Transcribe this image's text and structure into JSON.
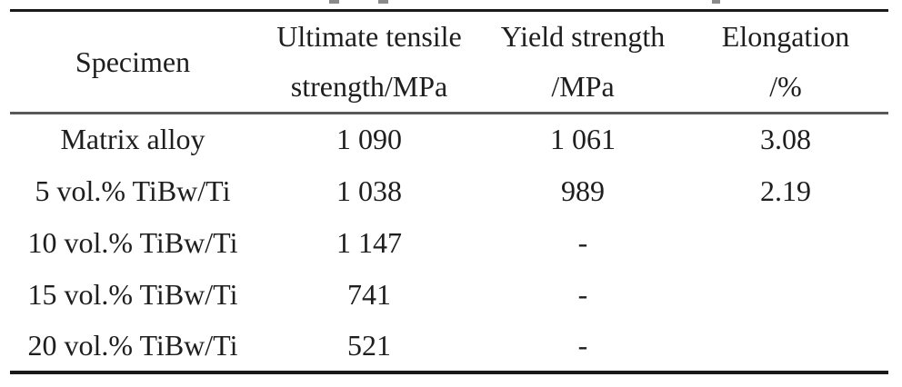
{
  "table": {
    "headers": [
      {
        "line1": "Specimen",
        "line2": ""
      },
      {
        "line1": "Ultimate tensile",
        "line2": "strength/MPa"
      },
      {
        "line1": "Yield strength",
        "line2": "/MPa"
      },
      {
        "line1": "Elongation",
        "line2": "/%"
      }
    ],
    "rows": [
      {
        "specimen": "Matrix alloy",
        "uts": "1 090",
        "yield": "1 061",
        "elongation": "3.08"
      },
      {
        "specimen": "5 vol.% TiBw/Ti",
        "uts": "1 038",
        "yield": "989",
        "elongation": "2.19"
      },
      {
        "specimen": "10 vol.% TiBw/Ti",
        "uts": "1 147",
        "yield": "-",
        "elongation": ""
      },
      {
        "specimen": "15 vol.% TiBw/Ti",
        "uts": "741",
        "yield": "-",
        "elongation": ""
      },
      {
        "specimen": "20 vol.% TiBw/Ti",
        "uts": "521",
        "yield": "-",
        "elongation": ""
      }
    ]
  },
  "colors": {
    "rule_dark": "#1a1a1a",
    "rule_separator_gray": "#595959",
    "text": "#1e1e1e",
    "background": "#ffffff",
    "caption_fragment_gray": "#8a8a8a"
  }
}
